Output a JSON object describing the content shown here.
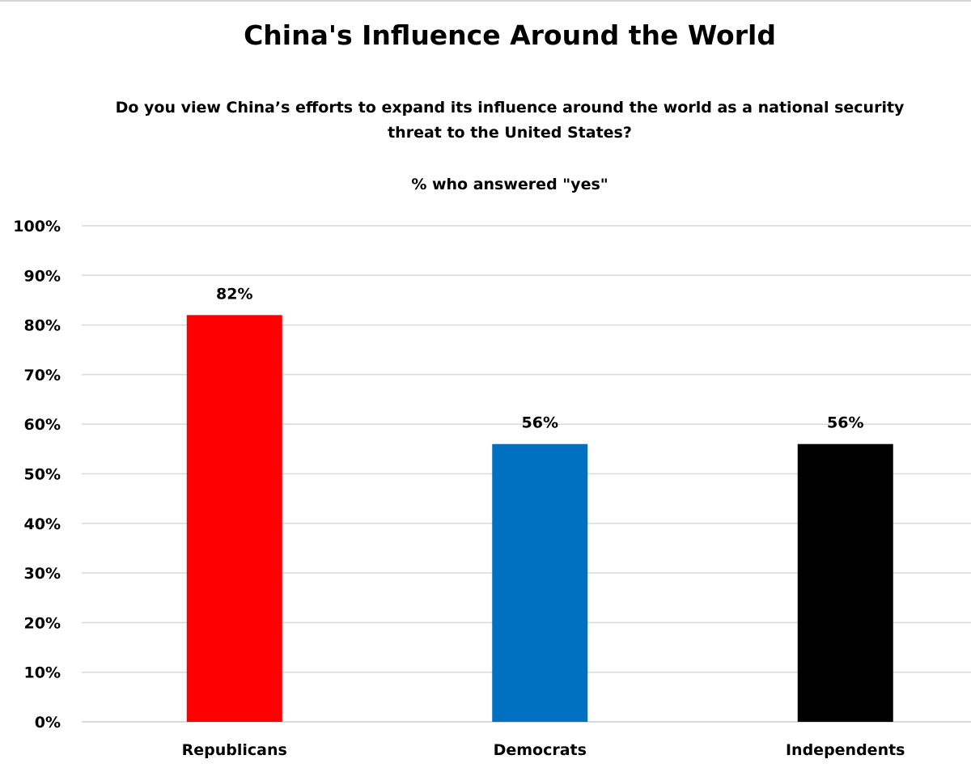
{
  "chart_data": {
    "type": "bar",
    "title": "China's Influence Around the World",
    "subtitle": "Do you view China’s efforts to expand its influence around the world as a national security threat to the United States?",
    "note": "% who answered \"yes\"",
    "categories": [
      "Republicans",
      "Democrats",
      "Independents"
    ],
    "values": [
      82,
      56,
      56
    ],
    "data_labels": [
      "82%",
      "56%",
      "56%"
    ],
    "colors": [
      "#ff0000",
      "#0070c0",
      "#000000"
    ],
    "ylim": [
      0,
      100
    ],
    "yticks": [
      0,
      10,
      20,
      30,
      40,
      50,
      60,
      70,
      80,
      90,
      100
    ],
    "ytick_labels": [
      "0%",
      "10%",
      "20%",
      "30%",
      "40%",
      "50%",
      "60%",
      "70%",
      "80%",
      "90%",
      "100%"
    ],
    "grid": true,
    "gridline_color": "#d9d9d9",
    "xlabel": "",
    "ylabel": ""
  }
}
